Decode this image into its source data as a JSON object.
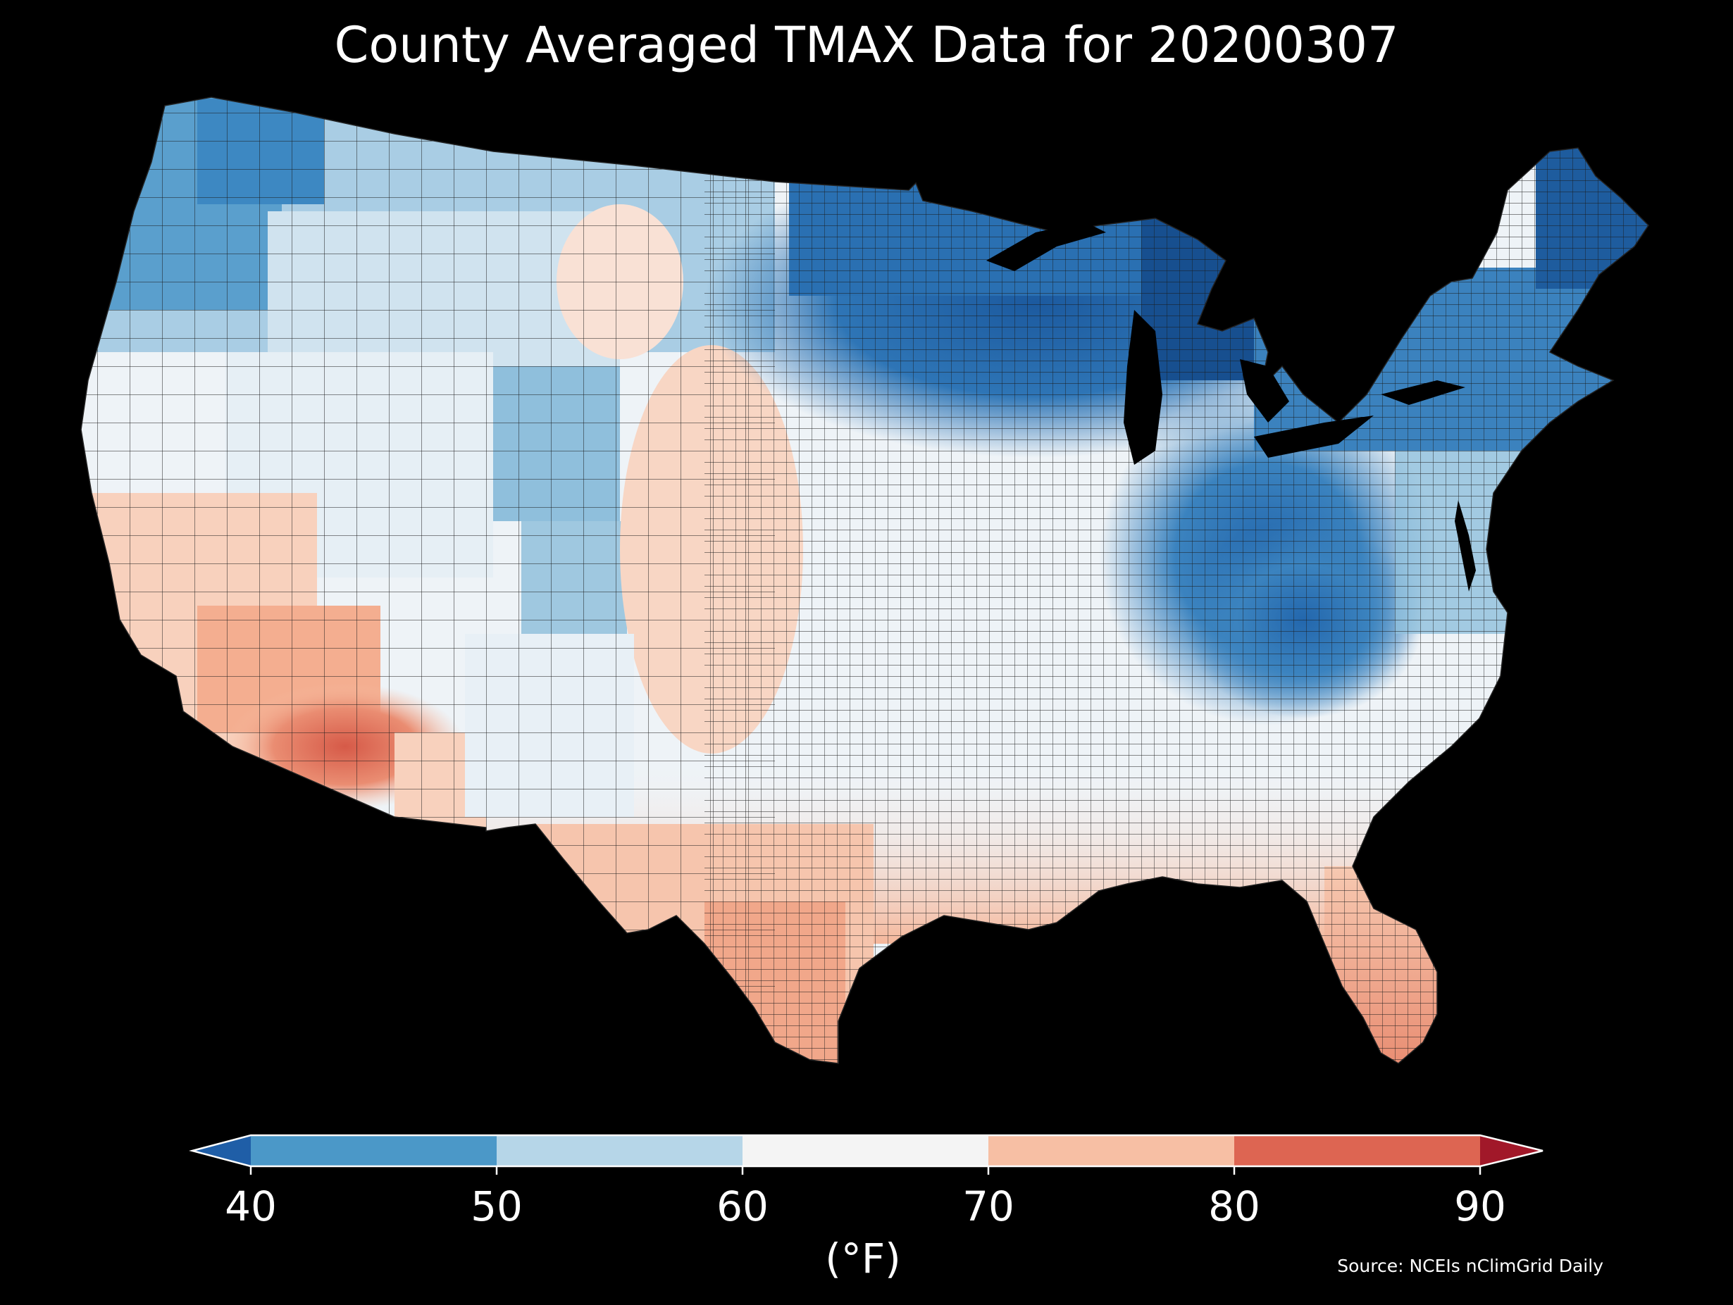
{
  "title": "County Averaged TMAX Data for 20200307",
  "colorbar": {
    "ticks": [
      "40",
      "50",
      "60",
      "70",
      "80",
      "90"
    ],
    "unit": "(°F)",
    "bins": [
      {
        "from": 40,
        "to": 50,
        "color": "#4b98c8"
      },
      {
        "from": 50,
        "to": 60,
        "color": "#b6d6e8"
      },
      {
        "from": 60,
        "to": 70,
        "color": "#f4f4f4"
      },
      {
        "from": 70,
        "to": 80,
        "color": "#f7bfa4"
      },
      {
        "from": 80,
        "to": 90,
        "color": "#dd6552"
      }
    ],
    "under_color": "#1f5ea7",
    "over_color": "#a11829"
  },
  "source": "Source: NCEIs nClimGrid Daily",
  "map": {
    "region": "contiguous-united-states",
    "background_color": "#000000",
    "county_border_color": "#1a1a1a"
  }
}
